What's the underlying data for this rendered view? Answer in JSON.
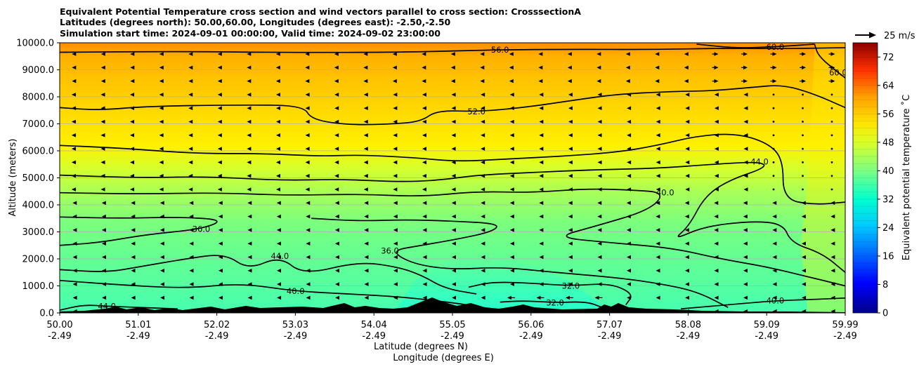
{
  "chart_data": {
    "type": "contour-cross-section",
    "title_lines": [
      "Equivalent Potential Temperature cross section and wind vectors parallel to cross section: CrosssectionA",
      "Latitudes (degrees north): 50.00,60.00, Longitudes (degrees east): -2.50,-2.50",
      "Simulation start time: 2024-09-01 00:00:00, Valid time: 2024-09-02 23:00:00"
    ],
    "xlabel_lat": "Latitude (degrees N)",
    "xlabel_lon": "Longitude (degrees E)",
    "ylabel": "Altitude (meters)",
    "ylim": [
      0,
      10000
    ],
    "xlim": [
      50.0,
      59.99
    ],
    "yticks": [
      "0.0",
      "1000.0",
      "2000.0",
      "3000.0",
      "4000.0",
      "5000.0",
      "6000.0",
      "7000.0",
      "8000.0",
      "9000.0",
      "10000.0"
    ],
    "xticks": [
      {
        "lat": "50.00",
        "lon": "-2.49"
      },
      {
        "lat": "51.01",
        "lon": "-2.49"
      },
      {
        "lat": "52.02",
        "lon": "-2.49"
      },
      {
        "lat": "53.03",
        "lon": "-2.49"
      },
      {
        "lat": "54.04",
        "lon": "-2.49"
      },
      {
        "lat": "55.05",
        "lon": "-2.49"
      },
      {
        "lat": "56.06",
        "lon": "-2.49"
      },
      {
        "lat": "57.07",
        "lon": "-2.49"
      },
      {
        "lat": "58.08",
        "lon": "-2.49"
      },
      {
        "lat": "59.09",
        "lon": "-2.49"
      },
      {
        "lat": "59.99",
        "lon": "-2.49"
      }
    ],
    "colorbar": {
      "label": "Equivalent potential temperature ˚C",
      "min": 0,
      "max": 76,
      "ticks": [
        "0",
        "8",
        "16",
        "24",
        "32",
        "40",
        "48",
        "56",
        "64",
        "72"
      ]
    },
    "quiver_key": "25 m/s",
    "contours": [
      {
        "level": 56,
        "label": "56.0",
        "points": [
          [
            50.0,
            9650
          ],
          [
            51.5,
            9680
          ],
          [
            53,
            9640
          ],
          [
            54.3,
            9650
          ],
          [
            55.05,
            9700
          ],
          [
            55.6,
            9740
          ],
          [
            56.5,
            9760
          ],
          [
            57.5,
            9750
          ],
          [
            58.5,
            9800
          ],
          [
            59.2,
            9780
          ],
          [
            59.99,
            9820
          ]
        ]
      },
      {
        "level": 52,
        "label": "52.0",
        "points": [
          [
            50.0,
            7600
          ],
          [
            50.5,
            7500
          ],
          [
            51.1,
            7650
          ],
          [
            52.3,
            7700
          ],
          [
            53.1,
            7680
          ],
          [
            53.2,
            7150
          ],
          [
            53.7,
            6950
          ],
          [
            54.3,
            7000
          ],
          [
            54.6,
            7100
          ],
          [
            54.8,
            7500
          ],
          [
            55.3,
            7450
          ],
          [
            55.9,
            7600
          ],
          [
            56.6,
            7900
          ],
          [
            57.1,
            8100
          ],
          [
            57.8,
            8200
          ],
          [
            58.3,
            8220
          ],
          [
            58.8,
            8350
          ],
          [
            59.2,
            8450
          ],
          [
            59.6,
            8100
          ],
          [
            59.99,
            7600
          ]
        ]
      },
      {
        "level": 48,
        "label": "",
        "points": [
          [
            50.0,
            6200
          ],
          [
            50.8,
            6100
          ],
          [
            51.7,
            5900
          ],
          [
            52.6,
            5900
          ],
          [
            53.3,
            5800
          ],
          [
            53.8,
            5850
          ],
          [
            54.5,
            5750
          ],
          [
            55.05,
            5600
          ],
          [
            55.7,
            5700
          ],
          [
            56.4,
            5800
          ],
          [
            57.1,
            5950
          ],
          [
            57.6,
            6200
          ],
          [
            58.1,
            6550
          ],
          [
            58.6,
            6650
          ],
          [
            59.0,
            6300
          ],
          [
            59.2,
            5700
          ],
          [
            59.2,
            4200
          ],
          [
            59.6,
            4000
          ],
          [
            59.99,
            4100
          ]
        ]
      },
      {
        "level": 44,
        "label": "44.0",
        "points": [
          [
            50.0,
            5100
          ],
          [
            51.0,
            5000
          ],
          [
            51.9,
            5050
          ],
          [
            52.8,
            4900
          ],
          [
            53.6,
            4950
          ],
          [
            54.3,
            4850
          ],
          [
            54.8,
            4900
          ],
          [
            55.3,
            5100
          ],
          [
            56.0,
            5200
          ],
          [
            56.8,
            5300
          ],
          [
            57.6,
            5350
          ],
          [
            58.3,
            5500
          ],
          [
            58.9,
            5600
          ],
          [
            59.0,
            5400
          ],
          [
            58.5,
            4900
          ],
          [
            58.2,
            4300
          ],
          [
            58.0,
            3200
          ],
          [
            57.8,
            2700
          ],
          [
            58.2,
            3200
          ],
          [
            58.8,
            3400
          ],
          [
            59.2,
            3300
          ],
          [
            59.3,
            2600
          ],
          [
            59.7,
            2200
          ],
          [
            59.99,
            1500
          ]
        ]
      },
      {
        "level": 40,
        "label": "40.0",
        "points": [
          [
            50.0,
            4450
          ],
          [
            51.0,
            4400
          ],
          [
            52.0,
            4450
          ],
          [
            52.9,
            4350
          ],
          [
            53.8,
            4400
          ],
          [
            54.6,
            4300
          ],
          [
            55.3,
            4500
          ],
          [
            56.0,
            4450
          ],
          [
            56.7,
            4600
          ],
          [
            57.3,
            4550
          ],
          [
            57.7,
            4450
          ],
          [
            57.5,
            3800
          ],
          [
            56.8,
            3200
          ],
          [
            56.3,
            2800
          ],
          [
            57.0,
            2600
          ],
          [
            57.8,
            2400
          ],
          [
            58.4,
            2000
          ],
          [
            59.0,
            1700
          ],
          [
            59.5,
            1350
          ],
          [
            59.99,
            1000
          ]
        ]
      },
      {
        "level": 36,
        "label": "36.0",
        "points": [
          [
            50.0,
            3550
          ],
          [
            50.8,
            3500
          ],
          [
            51.5,
            3550
          ],
          [
            52.1,
            3450
          ],
          [
            51.8,
            3100
          ],
          [
            51.1,
            2900
          ],
          [
            50.5,
            2600
          ],
          [
            50.0,
            2500
          ]
        ]
      },
      {
        "level": 36,
        "label": "36.0",
        "points": [
          [
            53.2,
            3500
          ],
          [
            53.8,
            3400
          ],
          [
            54.4,
            3450
          ],
          [
            55.0,
            3400
          ],
          [
            55.6,
            3300
          ],
          [
            55.5,
            3000
          ],
          [
            55.0,
            2700
          ],
          [
            54.6,
            2500
          ],
          [
            54.2,
            2300
          ],
          [
            54.5,
            1800
          ],
          [
            55.0,
            1600
          ],
          [
            55.6,
            1700
          ],
          [
            56.3,
            1500
          ],
          [
            57.1,
            1300
          ],
          [
            57.6,
            1100
          ],
          [
            58.1,
            800
          ],
          [
            58.5,
            200
          ]
        ]
      },
      {
        "level": 44,
        "label": "44.0",
        "points": [
          [
            50.0,
            1600
          ],
          [
            50.6,
            1500
          ],
          [
            51.0,
            1700
          ],
          [
            51.6,
            2000
          ],
          [
            52.1,
            2200
          ],
          [
            52.4,
            1600
          ],
          [
            52.8,
            2100
          ],
          [
            53.1,
            1400
          ],
          [
            53.8,
            1900
          ],
          [
            54.3,
            1700
          ],
          [
            54.6,
            1400
          ],
          [
            54.9,
            900
          ],
          [
            55.3,
            700
          ]
        ]
      },
      {
        "level": 40,
        "label": "40.0",
        "points": [
          [
            50.0,
            1200
          ],
          [
            50.7,
            1050
          ],
          [
            51.6,
            900
          ],
          [
            52.3,
            1100
          ],
          [
            53.0,
            800
          ],
          [
            53.7,
            700
          ],
          [
            54.3,
            600
          ],
          [
            54.8,
            450
          ],
          [
            55.3,
            250
          ]
        ]
      },
      {
        "level": 44,
        "label": "44.0",
        "points": [
          [
            50.0,
            100
          ],
          [
            50.3,
            300
          ],
          [
            50.6,
            250
          ],
          [
            51.0,
            200
          ],
          [
            51.5,
            150
          ]
        ]
      },
      {
        "level": 32,
        "label": "32.0",
        "points": [
          [
            55.2,
            950
          ],
          [
            55.5,
            1150
          ],
          [
            56.0,
            1100
          ],
          [
            56.5,
            1000
          ],
          [
            57.0,
            1100
          ],
          [
            57.3,
            700
          ],
          [
            57.2,
            300
          ]
        ]
      },
      {
        "level": 32,
        "label": "32.0",
        "points": [
          [
            55.6,
            400
          ],
          [
            55.9,
            450
          ],
          [
            56.3,
            380
          ],
          [
            56.7,
            420
          ],
          [
            56.9,
            200
          ]
        ]
      },
      {
        "level": 40,
        "label": "40.0",
        "points": [
          [
            57.9,
            150
          ],
          [
            58.5,
            300
          ],
          [
            59.1,
            450
          ],
          [
            59.6,
            500
          ],
          [
            59.99,
            550
          ]
        ]
      },
      {
        "level": 60,
        "label": "60.0",
        "points": [
          [
            58.1,
            9950
          ],
          [
            58.6,
            9800
          ],
          [
            59.1,
            9850
          ],
          [
            59.6,
            9950
          ]
        ]
      },
      {
        "level": 60,
        "label": "60.0",
        "points": [
          [
            59.6,
            9950
          ],
          [
            59.65,
            9500
          ],
          [
            59.9,
            8900
          ],
          [
            59.99,
            8700
          ]
        ]
      }
    ]
  }
}
